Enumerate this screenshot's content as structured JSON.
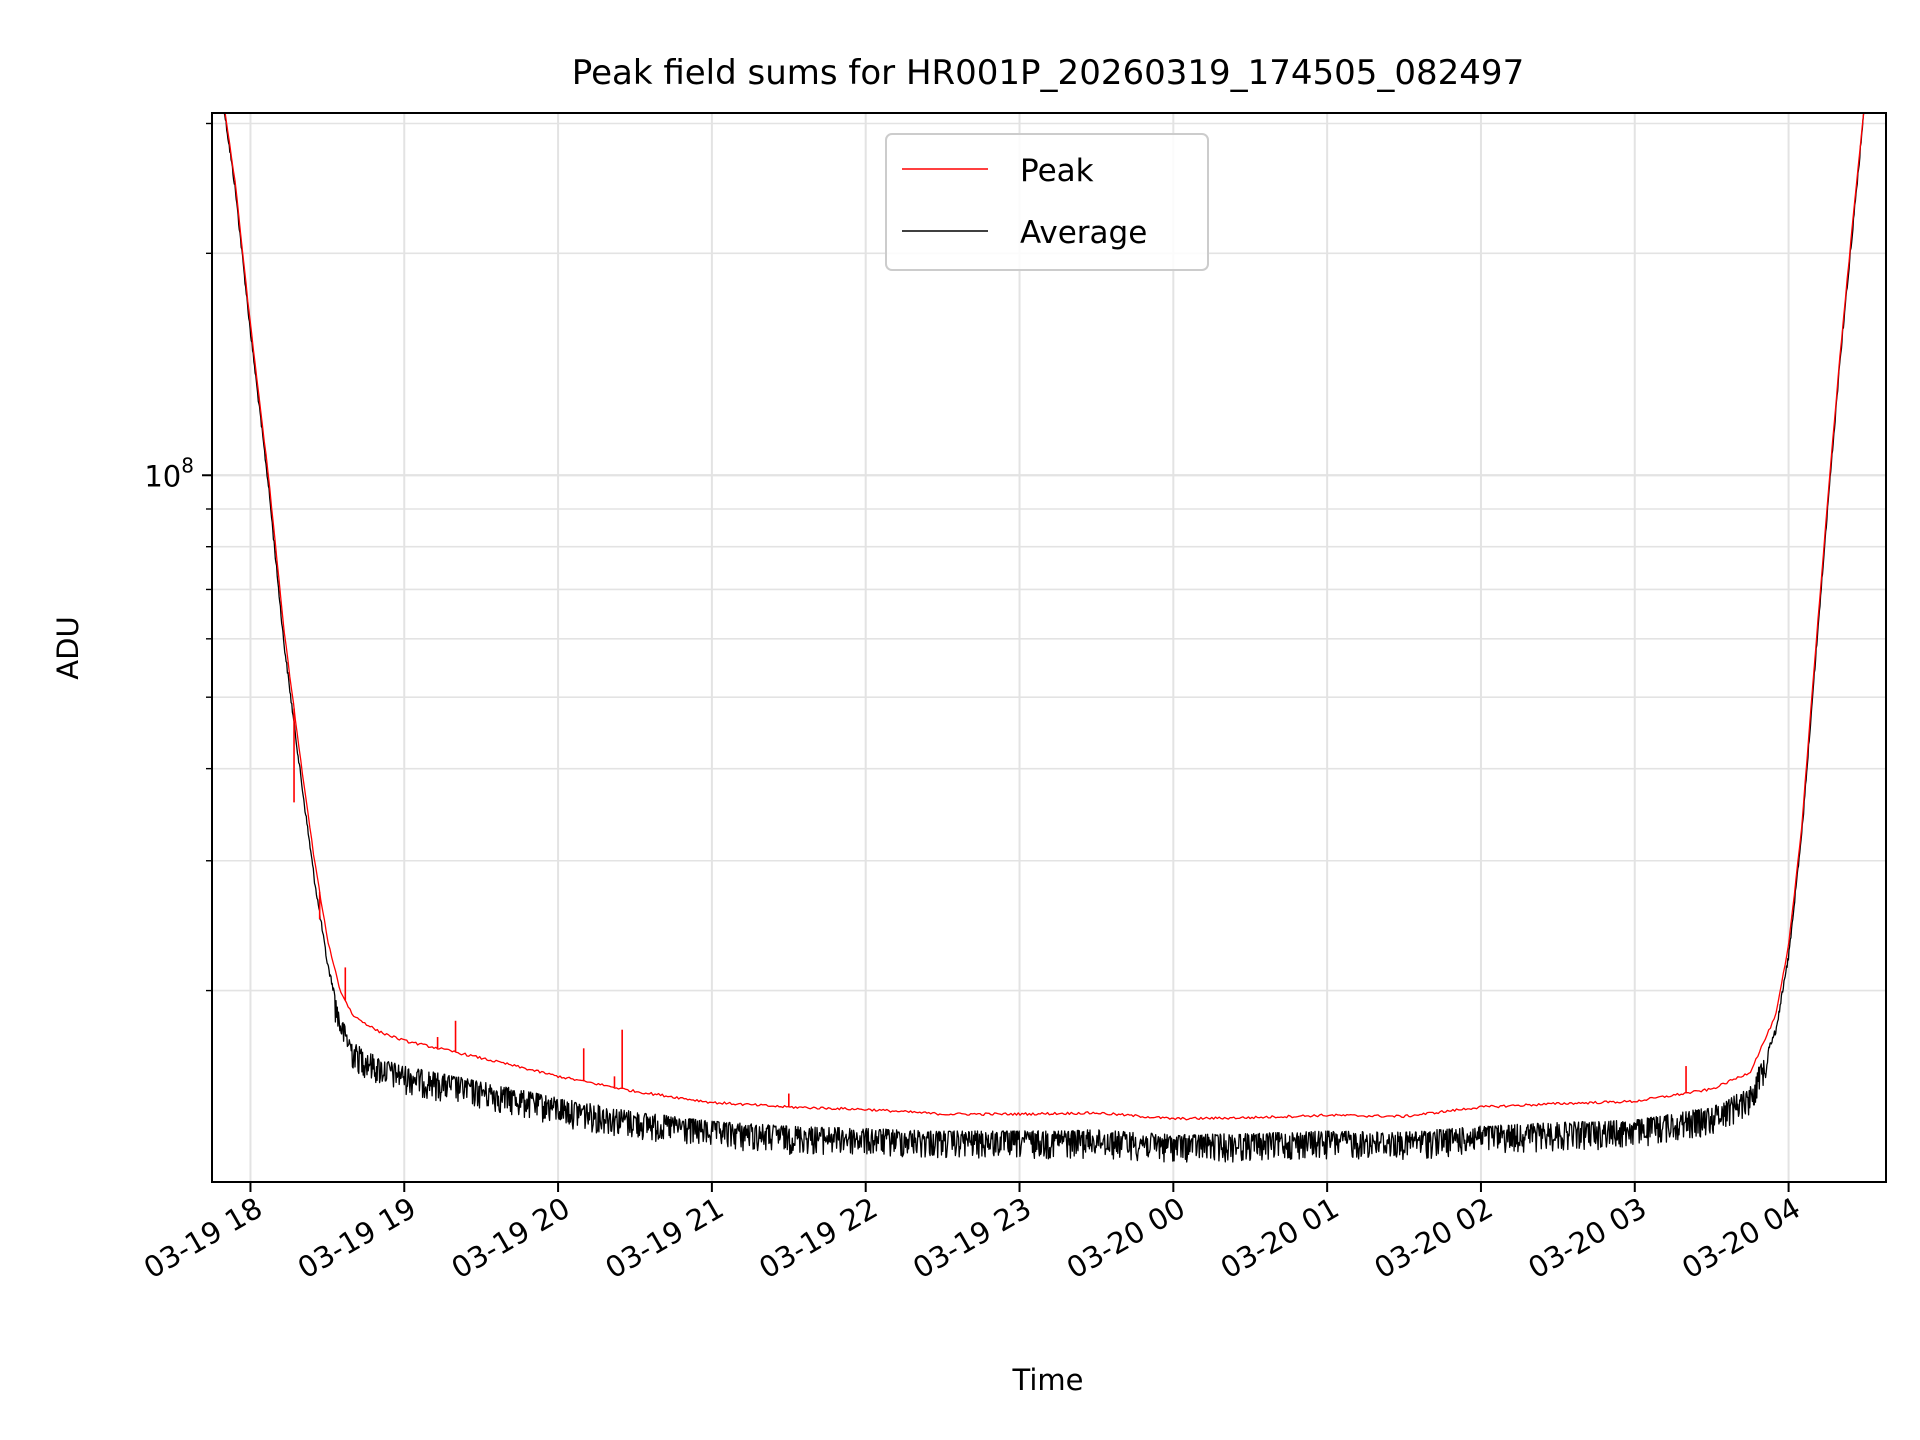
{
  "chart_data": {
    "type": "line",
    "title": "Peak field sums for HR001P_20260319_174505_082497",
    "xlabel": "Time",
    "ylabel": "ADU",
    "y_scale": "log",
    "ylim": [
      11000000,
      310000000
    ],
    "xlim": [
      "2026-03-19 17:45",
      "2026-03-20 04:38"
    ],
    "x_ticks": [
      "03-19 18",
      "03-19 19",
      "03-19 20",
      "03-19 21",
      "03-19 22",
      "03-19 23",
      "03-20 00",
      "03-20 01",
      "03-20 02",
      "03-20 03",
      "03-20 04"
    ],
    "y_ticks": [
      {
        "value": 100000000,
        "label": "10^8"
      }
    ],
    "grid": true,
    "legend": {
      "placement": "top-center",
      "entries": [
        "Peak",
        "Average"
      ]
    },
    "series": [
      {
        "name": "Peak",
        "color": "#ff0000",
        "points": [
          [
            "2026-03-19 17:49",
            330000000
          ],
          [
            "2026-03-19 17:54",
            250000000
          ],
          [
            "2026-03-19 18:00",
            160000000
          ],
          [
            "2026-03-19 18:07",
            100000000
          ],
          [
            "2026-03-19 18:13",
            62000000
          ],
          [
            "2026-03-19 18:20",
            40000000
          ],
          [
            "2026-03-19 18:25",
            30000000
          ],
          [
            "2026-03-19 18:30",
            23500000
          ],
          [
            "2026-03-19 18:35",
            20000000
          ],
          [
            "2026-03-19 18:40",
            18500000
          ],
          [
            "2026-03-19 18:50",
            17600000
          ],
          [
            "2026-03-19 19:00",
            17100000
          ],
          [
            "2026-03-19 19:20",
            16500000
          ],
          [
            "2026-03-19 19:40",
            15900000
          ],
          [
            "2026-03-19 20:00",
            15300000
          ],
          [
            "2026-03-19 20:30",
            14600000
          ],
          [
            "2026-03-19 21:00",
            14100000
          ],
          [
            "2026-03-19 21:30",
            13900000
          ],
          [
            "2026-03-19 22:00",
            13800000
          ],
          [
            "2026-03-19 22:30",
            13600000
          ],
          [
            "2026-03-19 23:00",
            13600000
          ],
          [
            "2026-03-19 23:30",
            13650000
          ],
          [
            "2026-03-20 00:00",
            13400000
          ],
          [
            "2026-03-20 00:30",
            13450000
          ],
          [
            "2026-03-20 01:00",
            13550000
          ],
          [
            "2026-03-20 01:30",
            13500000
          ],
          [
            "2026-03-20 02:00",
            13900000
          ],
          [
            "2026-03-20 02:30",
            14050000
          ],
          [
            "2026-03-20 03:00",
            14150000
          ],
          [
            "2026-03-20 03:30",
            14700000
          ],
          [
            "2026-03-20 03:45",
            15500000
          ],
          [
            "2026-03-20 03:55",
            18500000
          ],
          [
            "2026-03-20 04:00",
            23000000
          ],
          [
            "2026-03-20 04:05",
            33000000
          ],
          [
            "2026-03-20 04:10",
            55000000
          ],
          [
            "2026-03-20 04:15",
            90000000
          ],
          [
            "2026-03-20 04:20",
            145000000
          ],
          [
            "2026-03-20 04:25",
            220000000
          ],
          [
            "2026-03-20 04:30",
            330000000
          ]
        ],
        "spikes": [
          [
            "2026-03-19 18:17",
            36000000
          ],
          [
            "2026-03-19 18:27",
            25000000
          ],
          [
            "2026-03-19 18:37",
            21500000
          ],
          [
            "2026-03-19 19:20",
            18200000
          ],
          [
            "2026-03-19 19:13",
            17300000
          ],
          [
            "2026-03-19 20:10",
            16700000
          ],
          [
            "2026-03-19 20:25",
            17700000
          ],
          [
            "2026-03-19 20:22",
            15300000
          ],
          [
            "2026-03-19 21:30",
            14500000
          ],
          [
            "2026-03-20 03:20",
            15800000
          ]
        ]
      },
      {
        "name": "Average",
        "color": "#000000",
        "noise": "dense",
        "points": [
          [
            "2026-03-19 17:49",
            330000000
          ],
          [
            "2026-03-19 17:54",
            248000000
          ],
          [
            "2026-03-19 18:00",
            158000000
          ],
          [
            "2026-03-19 18:07",
            98000000
          ],
          [
            "2026-03-19 18:13",
            60000000
          ],
          [
            "2026-03-19 18:20",
            38500000
          ],
          [
            "2026-03-19 18:25",
            28500000
          ],
          [
            "2026-03-19 18:30",
            22000000
          ],
          [
            "2026-03-19 18:35",
            18500000
          ],
          [
            "2026-03-19 18:40",
            17000000
          ],
          [
            "2026-03-19 18:50",
            16200000
          ],
          [
            "2026-03-19 19:00",
            15800000
          ],
          [
            "2026-03-19 19:20",
            15300000
          ],
          [
            "2026-03-19 19:40",
            14800000
          ],
          [
            "2026-03-19 20:00",
            14300000
          ],
          [
            "2026-03-19 20:30",
            13700000
          ],
          [
            "2026-03-19 21:00",
            13300000
          ],
          [
            "2026-03-19 21:30",
            13100000
          ],
          [
            "2026-03-19 22:00",
            13000000
          ],
          [
            "2026-03-19 22:30",
            12900000
          ],
          [
            "2026-03-19 23:00",
            12900000
          ],
          [
            "2026-03-19 23:30",
            12950000
          ],
          [
            "2026-03-20 00:00",
            12750000
          ],
          [
            "2026-03-20 00:30",
            12800000
          ],
          [
            "2026-03-20 01:00",
            12900000
          ],
          [
            "2026-03-20 01:30",
            12850000
          ],
          [
            "2026-03-20 02:00",
            13100000
          ],
          [
            "2026-03-20 02:30",
            13250000
          ],
          [
            "2026-03-20 03:00",
            13350000
          ],
          [
            "2026-03-20 03:30",
            13900000
          ],
          [
            "2026-03-20 03:45",
            14800000
          ],
          [
            "2026-03-20 03:55",
            17800000
          ],
          [
            "2026-03-20 04:00",
            22500000
          ],
          [
            "2026-03-20 04:05",
            32500000
          ],
          [
            "2026-03-20 04:10",
            54000000
          ],
          [
            "2026-03-20 04:15",
            89000000
          ],
          [
            "2026-03-20 04:20",
            144000000
          ],
          [
            "2026-03-20 04:25",
            218000000
          ],
          [
            "2026-03-20 04:30",
            330000000
          ]
        ]
      }
    ]
  }
}
